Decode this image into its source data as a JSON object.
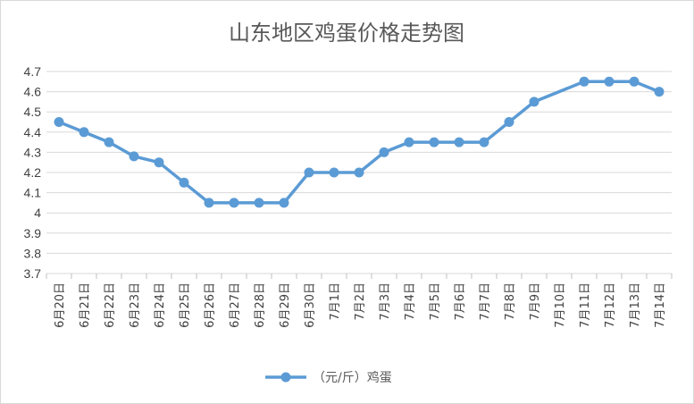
{
  "chart_data": {
    "type": "line",
    "title": "山东地区鸡蛋价格走势图",
    "xlabel": "",
    "ylabel": "",
    "ylim": [
      3.7,
      4.7
    ],
    "yticks": [
      "3.7",
      "3.8",
      "3.9",
      "4",
      "4.1",
      "4.2",
      "4.3",
      "4.4",
      "4.5",
      "4.6",
      "4.7"
    ],
    "grid": true,
    "legend": "bottom",
    "categories": [
      "6月20日",
      "6月21日",
      "6月22日",
      "6月23日",
      "6月24日",
      "6月25日",
      "6月26日",
      "6月27日",
      "6月28日",
      "6月29日",
      "6月30日",
      "7月1日",
      "7月2日",
      "7月3日",
      "7月4日",
      "7月5日",
      "7月6日",
      "7月7日",
      "7月8日",
      "7月9日",
      "7月10日",
      "7月11日",
      "7月12日",
      "7月13日",
      "7月14日"
    ],
    "series": [
      {
        "name": "（元/斤）鸡蛋",
        "color": "#5b9bd5",
        "values": [
          4.45,
          4.4,
          4.35,
          4.28,
          4.25,
          4.15,
          4.05,
          4.05,
          4.05,
          4.05,
          4.2,
          4.2,
          4.2,
          4.3,
          4.35,
          4.35,
          4.35,
          4.35,
          4.45,
          4.55,
          null,
          4.65,
          4.65,
          4.65,
          4.6
        ]
      }
    ]
  }
}
